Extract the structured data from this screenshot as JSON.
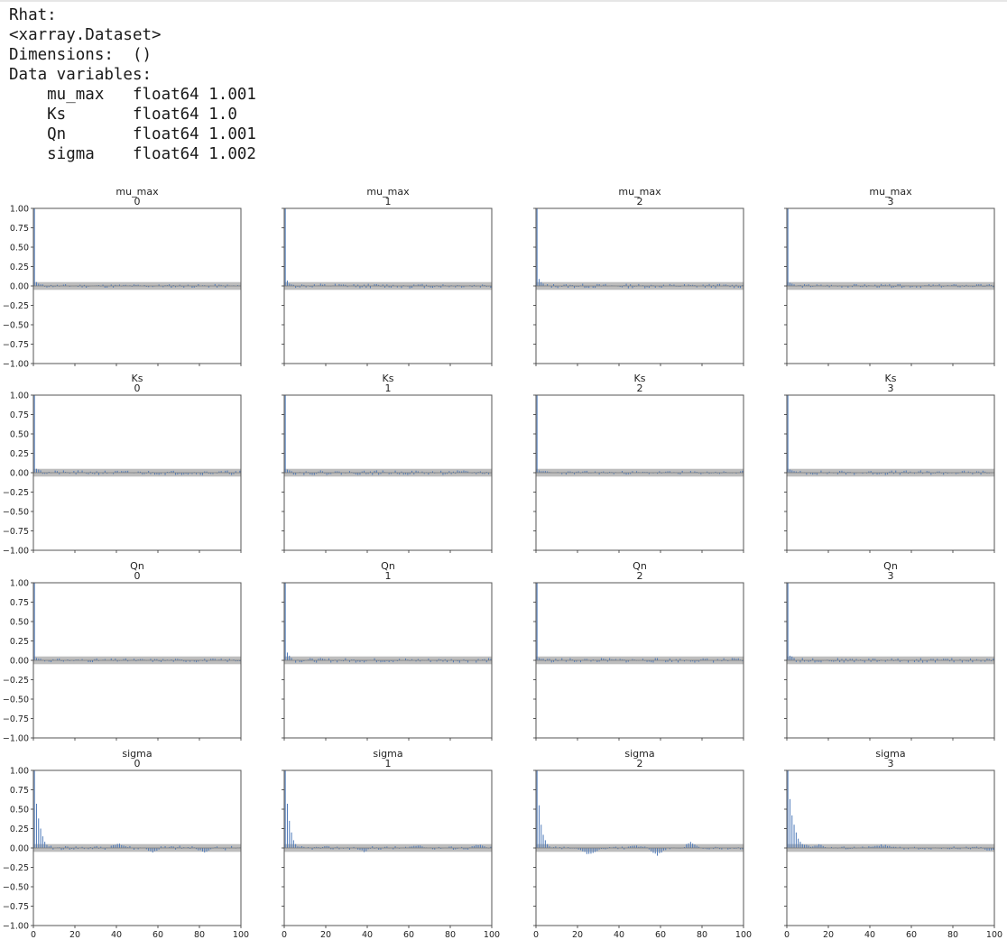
{
  "console": {
    "lines": [
      "Rhat:",
      "<xarray.Dataset>",
      "Dimensions:  ()",
      "Data variables:",
      "    mu_max   float64 1.001",
      "    Ks       float64 1.0",
      "    Qn       float64 1.001",
      "    sigma    float64 1.002"
    ]
  },
  "chart_data": {
    "type": "bar",
    "kind": "autocorrelation grid (4 variables x 4 chains)",
    "xlim": [
      0,
      100
    ],
    "ylim": [
      -1.0,
      1.0
    ],
    "x_ticks": [
      0,
      20,
      40,
      60,
      80,
      100
    ],
    "y_ticks": [
      "1.00",
      "0.75",
      "0.50",
      "0.25",
      "0.00",
      "-0.25",
      "-0.50",
      "-0.75",
      "-1.00"
    ],
    "confidence_band": [
      -0.05,
      0.05
    ],
    "colors": {
      "bars": "#4c78b8",
      "band": "#bdbdbd",
      "axes": "#555555"
    },
    "rows": [
      {
        "variable": "mu_max",
        "panels": [
          {
            "title": "mu_max",
            "chain": "0",
            "lag0": 1.0,
            "head": [
              0.05,
              0.03,
              0.02
            ],
            "amp": 0.025,
            "seed": 11
          },
          {
            "title": "mu_max",
            "chain": "1",
            "lag0": 1.0,
            "head": [
              0.07,
              0.03,
              0.02
            ],
            "amp": 0.03,
            "seed": 12
          },
          {
            "title": "mu_max",
            "chain": "2",
            "lag0": 1.0,
            "head": [
              0.09,
              0.05,
              0.03
            ],
            "amp": 0.03,
            "seed": 13
          },
          {
            "title": "mu_max",
            "chain": "3",
            "lag0": 1.0,
            "head": [
              0.04,
              0.03,
              0.02
            ],
            "amp": 0.025,
            "seed": 14
          }
        ]
      },
      {
        "variable": "Ks",
        "panels": [
          {
            "title": "Ks",
            "chain": "0",
            "lag0": 1.0,
            "head": [
              0.05,
              0.04,
              0.03
            ],
            "amp": 0.03,
            "seed": 21
          },
          {
            "title": "Ks",
            "chain": "1",
            "lag0": 1.0,
            "head": [
              0.04,
              0.03,
              0.02
            ],
            "amp": 0.03,
            "seed": 22
          },
          {
            "title": "Ks",
            "chain": "2",
            "lag0": 1.0,
            "head": [
              0.03,
              0.02,
              0.02
            ],
            "amp": 0.025,
            "seed": 23
          },
          {
            "title": "Ks",
            "chain": "3",
            "lag0": 1.0,
            "head": [
              0.04,
              0.03,
              0.02
            ],
            "amp": 0.03,
            "seed": 24
          }
        ]
      },
      {
        "variable": "Qn",
        "panels": [
          {
            "title": "Qn",
            "chain": "0",
            "lag0": 1.0,
            "head": [
              0.03,
              0.02,
              0.02
            ],
            "amp": 0.025,
            "seed": 31
          },
          {
            "title": "Qn",
            "chain": "1",
            "lag0": 1.0,
            "head": [
              0.1,
              0.06,
              0.03
            ],
            "amp": 0.03,
            "seed": 32
          },
          {
            "title": "Qn",
            "chain": "2",
            "lag0": 1.0,
            "head": [
              0.03,
              0.02,
              0.02
            ],
            "amp": 0.03,
            "seed": 33
          },
          {
            "title": "Qn",
            "chain": "3",
            "lag0": 1.0,
            "head": [
              0.06,
              0.05,
              0.03
            ],
            "amp": 0.03,
            "seed": 34
          }
        ]
      },
      {
        "variable": "sigma",
        "panels": [
          {
            "title": "sigma",
            "chain": "0",
            "lag0": 1.0,
            "head": [
              0.57,
              0.38,
              0.25,
              0.15,
              0.08,
              0.04,
              0.02
            ],
            "amp": 0.03,
            "seed": 41,
            "bumps": [
              [
                40,
                0.06,
                4
              ],
              [
                57,
                -0.06,
                3
              ],
              [
                82,
                -0.06,
                4
              ]
            ]
          },
          {
            "title": "sigma",
            "chain": "1",
            "lag0": 1.0,
            "head": [
              0.57,
              0.35,
              0.2,
              0.1,
              0.05,
              0.02
            ],
            "amp": 0.025,
            "seed": 42,
            "bumps": [
              [
                38,
                -0.05,
                3
              ],
              [
                64,
                0.04,
                4
              ],
              [
                93,
                0.04,
                4
              ]
            ]
          },
          {
            "title": "sigma",
            "chain": "2",
            "lag0": 1.0,
            "head": [
              0.55,
              0.3,
              0.17,
              0.1,
              0.05,
              0.02
            ],
            "amp": 0.02,
            "seed": 43,
            "bumps": [
              [
                25,
                -0.08,
                6
              ],
              [
                47,
                0.03,
                4
              ],
              [
                58,
                -0.09,
                4
              ],
              [
                74,
                0.08,
                3
              ]
            ]
          },
          {
            "title": "sigma",
            "chain": "3",
            "lag0": 1.0,
            "head": [
              0.63,
              0.42,
              0.3,
              0.2,
              0.12,
              0.08,
              0.05,
              0.04,
              0.04,
              0.03
            ],
            "amp": 0.02,
            "seed": 44,
            "bumps": [
              [
                15,
                0.04,
                5
              ],
              [
                45,
                0.04,
                8
              ],
              [
                97,
                -0.04,
                3
              ]
            ]
          }
        ]
      }
    ]
  }
}
